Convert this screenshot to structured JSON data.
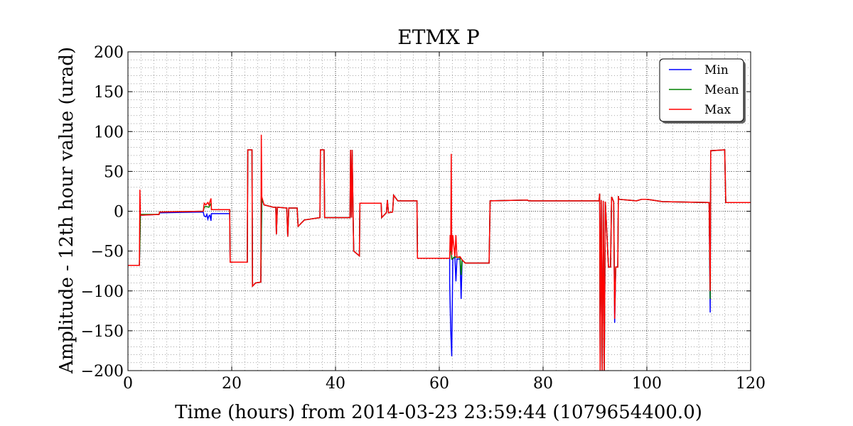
{
  "chart_data": {
    "type": "line",
    "title": "ETMX P",
    "xlabel": "Time (hours) from 2014-03-23 23:59:44 (1079654400.0)",
    "ylabel": "Amplitude - 12th hour value (urad)",
    "xlim": [
      0,
      120
    ],
    "ylim": [
      -200,
      200
    ],
    "x_ticks": [
      0,
      20,
      40,
      60,
      80,
      100,
      120
    ],
    "y_ticks": [
      -200,
      -150,
      -100,
      -50,
      0,
      50,
      100,
      150,
      200
    ],
    "x_tick_labels": [
      "0",
      "20",
      "40",
      "60",
      "80",
      "100",
      "120"
    ],
    "y_tick_labels": [
      "−200",
      "−150",
      "−100",
      "−50",
      "0",
      "50",
      "100",
      "150",
      "200"
    ],
    "grid": true,
    "minor_grid": true,
    "legend_position": "top-right",
    "colors": {
      "Min": "#0000ff",
      "Mean": "#008000",
      "Max": "#ff0000"
    },
    "series": [
      {
        "name": "Min",
        "points": [
          [
            0,
            -68
          ],
          [
            2.2,
            -68
          ],
          [
            2.3,
            -35
          ],
          [
            2.4,
            -5
          ],
          [
            6,
            -4
          ],
          [
            6.1,
            -2
          ],
          [
            14.5,
            -1
          ],
          [
            14.7,
            -6
          ],
          [
            15,
            -7
          ],
          [
            15.2,
            -4
          ],
          [
            15.4,
            -10
          ],
          [
            15.6,
            -6
          ],
          [
            15.8,
            -5
          ],
          [
            16,
            -12
          ],
          [
            16.1,
            -3
          ],
          [
            19.6,
            -3
          ],
          [
            19.7,
            -64
          ],
          [
            23,
            -64
          ],
          [
            23.1,
            77
          ],
          [
            23.9,
            77
          ],
          [
            24,
            -94
          ],
          [
            24.6,
            -90
          ],
          [
            25.6,
            -89
          ],
          [
            25.8,
            15
          ],
          [
            26.2,
            8
          ],
          [
            28,
            5
          ],
          [
            28.5,
            5
          ],
          [
            28.6,
            -29
          ],
          [
            28.8,
            5
          ],
          [
            30.6,
            4
          ],
          [
            30.8,
            -32
          ],
          [
            31,
            4
          ],
          [
            32.6,
            4
          ],
          [
            32.8,
            -19
          ],
          [
            34,
            -11
          ],
          [
            37,
            -8
          ],
          [
            37.1,
            77
          ],
          [
            37.8,
            77
          ],
          [
            37.9,
            -8
          ],
          [
            42.8,
            -8
          ],
          [
            42.9,
            77
          ],
          [
            43.1,
            -8
          ],
          [
            43.2,
            77
          ],
          [
            43.4,
            -8
          ],
          [
            43.5,
            -50
          ],
          [
            44.6,
            -56
          ],
          [
            44.7,
            10
          ],
          [
            48.8,
            10
          ],
          [
            48.9,
            -8
          ],
          [
            49.8,
            -2
          ],
          [
            50,
            14
          ],
          [
            50.2,
            -2
          ],
          [
            51,
            -1
          ],
          [
            51.2,
            20
          ],
          [
            52,
            13
          ],
          [
            55.7,
            13
          ],
          [
            55.8,
            -59
          ],
          [
            62,
            -59
          ],
          [
            62,
            -90
          ],
          [
            62.2,
            -150
          ],
          [
            62.4,
            -182
          ],
          [
            62.6,
            -60
          ],
          [
            63,
            -57
          ],
          [
            63.2,
            -88
          ],
          [
            63.4,
            -60
          ],
          [
            64,
            -60
          ],
          [
            64.2,
            -110
          ],
          [
            64.4,
            -61
          ],
          [
            65,
            -65
          ],
          [
            69.6,
            -65
          ],
          [
            69.8,
            13
          ],
          [
            77,
            14
          ],
          [
            77.2,
            13
          ],
          [
            90.8,
            13
          ],
          [
            90.9,
            22
          ],
          [
            91,
            -200
          ],
          [
            91.2,
            14
          ],
          [
            91.4,
            -200
          ],
          [
            91.6,
            13
          ],
          [
            91.8,
            -200
          ],
          [
            92,
            12
          ],
          [
            92.6,
            -70
          ],
          [
            93,
            -70
          ],
          [
            93.2,
            18
          ],
          [
            93.6,
            12
          ],
          [
            93.8,
            -140
          ],
          [
            94,
            -70
          ],
          [
            94.4,
            -70
          ],
          [
            94.5,
            19
          ],
          [
            94.6,
            15
          ],
          [
            98,
            13
          ],
          [
            99,
            15
          ],
          [
            100,
            15
          ],
          [
            101,
            14
          ],
          [
            103,
            12
          ],
          [
            112,
            11
          ],
          [
            112.2,
            -127
          ],
          [
            112.3,
            76
          ],
          [
            115,
            77
          ],
          [
            115.2,
            11
          ],
          [
            120,
            11
          ]
        ]
      },
      {
        "name": "Mean",
        "points": [
          [
            0,
            -68
          ],
          [
            2.2,
            -68
          ],
          [
            2.3,
            -40
          ],
          [
            2.4,
            -4
          ],
          [
            6,
            -4
          ],
          [
            6.1,
            -1
          ],
          [
            14.5,
            0
          ],
          [
            14.7,
            5
          ],
          [
            15,
            6
          ],
          [
            15.6,
            5
          ],
          [
            16,
            10
          ],
          [
            16.1,
            2
          ],
          [
            19.6,
            2
          ],
          [
            19.7,
            -64
          ],
          [
            23,
            -64
          ],
          [
            23.1,
            77
          ],
          [
            23.9,
            77
          ],
          [
            24,
            -94
          ],
          [
            24.6,
            -90
          ],
          [
            25.6,
            -89
          ],
          [
            25.8,
            16
          ],
          [
            26.2,
            8
          ],
          [
            28,
            5
          ],
          [
            28.5,
            5
          ],
          [
            28.6,
            -29
          ],
          [
            28.8,
            5
          ],
          [
            30.6,
            4
          ],
          [
            30.8,
            -32
          ],
          [
            31,
            4
          ],
          [
            32.6,
            4
          ],
          [
            32.8,
            -19
          ],
          [
            34,
            -11
          ],
          [
            37,
            -8
          ],
          [
            37.1,
            77
          ],
          [
            37.8,
            77
          ],
          [
            37.9,
            -8
          ],
          [
            42.8,
            -8
          ],
          [
            42.9,
            77
          ],
          [
            43.1,
            -8
          ],
          [
            43.2,
            77
          ],
          [
            43.4,
            -8
          ],
          [
            43.5,
            -50
          ],
          [
            44.6,
            -56
          ],
          [
            44.7,
            10
          ],
          [
            48.8,
            10
          ],
          [
            48.9,
            -8
          ],
          [
            49.8,
            -2
          ],
          [
            50,
            14
          ],
          [
            50.2,
            -2
          ],
          [
            51,
            -1
          ],
          [
            51.2,
            20
          ],
          [
            52,
            13
          ],
          [
            55.7,
            13
          ],
          [
            55.8,
            -59
          ],
          [
            62,
            -59
          ],
          [
            62.2,
            -40
          ],
          [
            62.4,
            -60
          ],
          [
            63,
            -57
          ],
          [
            63.4,
            -58
          ],
          [
            64,
            -58
          ],
          [
            64.2,
            -80
          ],
          [
            64.4,
            -61
          ],
          [
            65,
            -65
          ],
          [
            69.6,
            -65
          ],
          [
            69.8,
            13
          ],
          [
            77,
            14
          ],
          [
            77.2,
            13
          ],
          [
            90.8,
            13
          ],
          [
            90.9,
            22
          ],
          [
            91,
            -200
          ],
          [
            91.2,
            14
          ],
          [
            91.4,
            -200
          ],
          [
            91.6,
            13
          ],
          [
            91.8,
            -200
          ],
          [
            92,
            12
          ],
          [
            92.6,
            -70
          ],
          [
            93,
            -70
          ],
          [
            93.2,
            18
          ],
          [
            93.6,
            12
          ],
          [
            93.8,
            -120
          ],
          [
            94,
            -70
          ],
          [
            94.4,
            -70
          ],
          [
            94.5,
            19
          ],
          [
            94.6,
            15
          ],
          [
            98,
            13
          ],
          [
            99,
            15
          ],
          [
            100,
            15
          ],
          [
            101,
            14
          ],
          [
            103,
            12
          ],
          [
            112,
            11
          ],
          [
            112.2,
            -110
          ],
          [
            112.3,
            76
          ],
          [
            115,
            77
          ],
          [
            115.2,
            11
          ],
          [
            120,
            11
          ]
        ]
      },
      {
        "name": "Max",
        "points": [
          [
            0,
            -68
          ],
          [
            2.2,
            -68
          ],
          [
            2.3,
            27
          ],
          [
            2.4,
            -5
          ],
          [
            6,
            -4
          ],
          [
            6.1,
            -1
          ],
          [
            14.5,
            0
          ],
          [
            14.7,
            10
          ],
          [
            15,
            8
          ],
          [
            15.4,
            11
          ],
          [
            15.6,
            8
          ],
          [
            16,
            16
          ],
          [
            16.1,
            2
          ],
          [
            19.6,
            2
          ],
          [
            19.7,
            -64
          ],
          [
            23,
            -64
          ],
          [
            23.1,
            77
          ],
          [
            23.9,
            77
          ],
          [
            24,
            -94
          ],
          [
            24.6,
            -90
          ],
          [
            25.6,
            -89
          ],
          [
            25.7,
            96
          ],
          [
            25.8,
            18
          ],
          [
            26.2,
            8
          ],
          [
            28,
            5
          ],
          [
            28.5,
            5
          ],
          [
            28.6,
            -29
          ],
          [
            28.8,
            5
          ],
          [
            30.6,
            4
          ],
          [
            30.8,
            -32
          ],
          [
            31,
            4
          ],
          [
            32.6,
            4
          ],
          [
            32.8,
            -19
          ],
          [
            34,
            -11
          ],
          [
            37,
            -8
          ],
          [
            37.1,
            77
          ],
          [
            37.8,
            77
          ],
          [
            37.9,
            -8
          ],
          [
            42.8,
            -8
          ],
          [
            42.9,
            77
          ],
          [
            43.1,
            -8
          ],
          [
            43.2,
            77
          ],
          [
            43.4,
            -8
          ],
          [
            43.5,
            -50
          ],
          [
            44.6,
            -56
          ],
          [
            44.7,
            10
          ],
          [
            48.8,
            10
          ],
          [
            48.9,
            -8
          ],
          [
            49.8,
            -2
          ],
          [
            50,
            14
          ],
          [
            50.2,
            -2
          ],
          [
            51,
            -1
          ],
          [
            51.2,
            20
          ],
          [
            52,
            13
          ],
          [
            55.7,
            13
          ],
          [
            55.8,
            -59
          ],
          [
            62,
            -59
          ],
          [
            62.1,
            -30
          ],
          [
            62.2,
            -50
          ],
          [
            62.3,
            72
          ],
          [
            62.4,
            -55
          ],
          [
            62.6,
            -30
          ],
          [
            63,
            -57
          ],
          [
            63.2,
            -30
          ],
          [
            63.4,
            -58
          ],
          [
            64,
            -57
          ],
          [
            64.4,
            -61
          ],
          [
            65,
            -65
          ],
          [
            69.6,
            -65
          ],
          [
            69.8,
            13
          ],
          [
            77,
            14
          ],
          [
            77.2,
            13
          ],
          [
            90.8,
            13
          ],
          [
            90.9,
            22
          ],
          [
            91,
            -200
          ],
          [
            91.2,
            14
          ],
          [
            91.4,
            -200
          ],
          [
            91.6,
            13
          ],
          [
            91.8,
            -200
          ],
          [
            92,
            12
          ],
          [
            92.6,
            -70
          ],
          [
            93,
            -70
          ],
          [
            93.2,
            18
          ],
          [
            93.6,
            12
          ],
          [
            93.8,
            -135
          ],
          [
            94,
            -70
          ],
          [
            94.4,
            -70
          ],
          [
            94.5,
            19
          ],
          [
            94.6,
            15
          ],
          [
            98,
            13
          ],
          [
            99,
            15
          ],
          [
            100,
            15
          ],
          [
            101,
            14
          ],
          [
            103,
            12
          ],
          [
            112,
            11
          ],
          [
            112.2,
            -100
          ],
          [
            112.3,
            76
          ],
          [
            115,
            77
          ],
          [
            115.2,
            11
          ],
          [
            120,
            11
          ]
        ]
      }
    ]
  }
}
